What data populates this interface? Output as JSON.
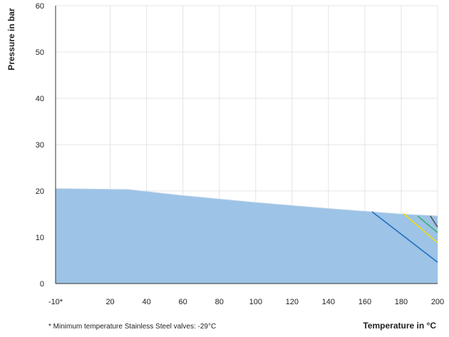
{
  "chart_data": {
    "type": "area",
    "ylabel": "Pressure in bar",
    "xlabel": "Temperature in °C",
    "footnote": "* Minimum temperature Stainless Steel valves:  -29°C",
    "xlim": [
      -10,
      200
    ],
    "ylim": [
      0,
      60
    ],
    "x_ticks": [
      -10,
      20,
      40,
      60,
      80,
      100,
      120,
      140,
      160,
      180,
      200
    ],
    "x_tick_labels": [
      "-10*",
      "20",
      "40",
      "60",
      "80",
      "100",
      "120",
      "140",
      "160",
      "180",
      "200"
    ],
    "y_ticks": [
      0,
      10,
      20,
      30,
      40,
      50,
      60
    ],
    "y_tick_labels": [
      "0",
      "10",
      "20",
      "30",
      "40",
      "50",
      "60"
    ],
    "grid": true,
    "series": [
      {
        "color": "#9dc3e6",
        "kind": "area",
        "points": [
          [
            -10,
            20.5
          ],
          [
            30,
            20.3
          ],
          [
            60,
            19
          ],
          [
            100,
            17.5
          ],
          [
            140,
            16.2
          ],
          [
            180,
            15
          ],
          [
            200,
            14.6
          ]
        ]
      }
    ],
    "lines": [
      {
        "color": "#1f6fc2",
        "points": [
          [
            164,
            15.5
          ],
          [
            200,
            4.6
          ]
        ]
      },
      {
        "color": "#f2e000",
        "points": [
          [
            181,
            15.2
          ],
          [
            200,
            8.8
          ]
        ]
      },
      {
        "color": "#39b36b",
        "points": [
          [
            189,
            14.6
          ],
          [
            200,
            11.0
          ]
        ]
      },
      {
        "color": "#555555",
        "points": [
          [
            196,
            14.6
          ],
          [
            200,
            12.2
          ]
        ]
      }
    ]
  }
}
